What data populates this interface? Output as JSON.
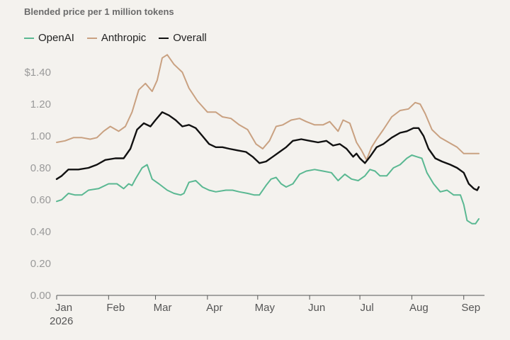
{
  "chart_data": {
    "type": "line",
    "title": "Blended price per 1 million tokens",
    "y_tick_labels": [
      "$1.40",
      "1.20",
      "1.00",
      "0.80",
      "0.60",
      "0.40",
      "0.20",
      "0.00"
    ],
    "y_tick_values": [
      1.4,
      1.2,
      1.0,
      0.8,
      0.6,
      0.4,
      0.2,
      0.0
    ],
    "ylim": [
      0,
      1.5
    ],
    "x_tick_labels": [
      "Jan",
      "Feb",
      "Mar",
      "Apr",
      "May",
      "Jun",
      "Jul",
      "Aug",
      "Sep"
    ],
    "x_year_label": "2026",
    "x_tick_dates": [
      "2026-01-01",
      "2026-02-01",
      "2026-03-01",
      "2026-04-01",
      "2026-05-01",
      "2026-06-01",
      "2026-07-01",
      "2026-08-01",
      "2026-09-01"
    ],
    "x_range": [
      "2026-01-01",
      "2026-09-10"
    ],
    "grid": false,
    "legend": "top-left",
    "series": [
      {
        "name": "OpenAI",
        "color": "#5ab892",
        "points": [
          [
            "2026-01-01",
            0.59
          ],
          [
            "2026-01-04",
            0.6
          ],
          [
            "2026-01-08",
            0.64
          ],
          [
            "2026-01-12",
            0.63
          ],
          [
            "2026-01-16",
            0.63
          ],
          [
            "2026-01-20",
            0.66
          ],
          [
            "2026-01-26",
            0.67
          ],
          [
            "2026-02-01",
            0.7
          ],
          [
            "2026-02-06",
            0.7
          ],
          [
            "2026-02-10",
            0.67
          ],
          [
            "2026-02-13",
            0.7
          ],
          [
            "2026-02-15",
            0.69
          ],
          [
            "2026-02-17",
            0.73
          ],
          [
            "2026-02-21",
            0.8
          ],
          [
            "2026-02-24",
            0.82
          ],
          [
            "2026-02-27",
            0.73
          ],
          [
            "2026-03-03",
            0.7
          ],
          [
            "2026-03-08",
            0.66
          ],
          [
            "2026-03-12",
            0.64
          ],
          [
            "2026-03-16",
            0.63
          ],
          [
            "2026-03-18",
            0.64
          ],
          [
            "2026-03-21",
            0.71
          ],
          [
            "2026-03-25",
            0.72
          ],
          [
            "2026-03-29",
            0.68
          ],
          [
            "2026-04-02",
            0.66
          ],
          [
            "2026-04-06",
            0.65
          ],
          [
            "2026-04-12",
            0.66
          ],
          [
            "2026-04-16",
            0.66
          ],
          [
            "2026-04-20",
            0.65
          ],
          [
            "2026-04-25",
            0.64
          ],
          [
            "2026-04-29",
            0.63
          ],
          [
            "2026-05-02",
            0.63
          ],
          [
            "2026-05-06",
            0.69
          ],
          [
            "2026-05-09",
            0.73
          ],
          [
            "2026-05-12",
            0.74
          ],
          [
            "2026-05-15",
            0.7
          ],
          [
            "2026-05-18",
            0.68
          ],
          [
            "2026-05-22",
            0.7
          ],
          [
            "2026-05-26",
            0.76
          ],
          [
            "2026-05-30",
            0.78
          ],
          [
            "2026-06-04",
            0.79
          ],
          [
            "2026-06-09",
            0.78
          ],
          [
            "2026-06-14",
            0.77
          ],
          [
            "2026-06-18",
            0.72
          ],
          [
            "2026-06-22",
            0.76
          ],
          [
            "2026-06-26",
            0.73
          ],
          [
            "2026-06-30",
            0.72
          ],
          [
            "2026-07-04",
            0.75
          ],
          [
            "2026-07-07",
            0.79
          ],
          [
            "2026-07-10",
            0.78
          ],
          [
            "2026-07-13",
            0.75
          ],
          [
            "2026-07-17",
            0.75
          ],
          [
            "2026-07-21",
            0.8
          ],
          [
            "2026-07-25",
            0.82
          ],
          [
            "2026-07-29",
            0.86
          ],
          [
            "2026-08-01",
            0.88
          ],
          [
            "2026-08-04",
            0.87
          ],
          [
            "2026-08-07",
            0.86
          ],
          [
            "2026-08-10",
            0.77
          ],
          [
            "2026-08-14",
            0.7
          ],
          [
            "2026-08-18",
            0.65
          ],
          [
            "2026-08-22",
            0.66
          ],
          [
            "2026-08-26",
            0.63
          ],
          [
            "2026-08-30",
            0.63
          ],
          [
            "2026-09-01",
            0.57
          ],
          [
            "2026-09-03",
            0.47
          ],
          [
            "2026-09-06",
            0.45
          ],
          [
            "2026-09-08",
            0.45
          ],
          [
            "2026-09-10",
            0.48
          ]
        ]
      },
      {
        "name": "Anthropic",
        "color": "#c9a181",
        "points": [
          [
            "2026-01-01",
            0.96
          ],
          [
            "2026-01-06",
            0.97
          ],
          [
            "2026-01-11",
            0.99
          ],
          [
            "2026-01-16",
            0.99
          ],
          [
            "2026-01-21",
            0.98
          ],
          [
            "2026-01-25",
            0.99
          ],
          [
            "2026-01-29",
            1.03
          ],
          [
            "2026-02-02",
            1.06
          ],
          [
            "2026-02-07",
            1.03
          ],
          [
            "2026-02-11",
            1.06
          ],
          [
            "2026-02-15",
            1.15
          ],
          [
            "2026-02-19",
            1.29
          ],
          [
            "2026-02-23",
            1.33
          ],
          [
            "2026-02-27",
            1.28
          ],
          [
            "2026-03-02",
            1.35
          ],
          [
            "2026-03-05",
            1.49
          ],
          [
            "2026-03-08",
            1.51
          ],
          [
            "2026-03-12",
            1.45
          ],
          [
            "2026-03-17",
            1.4
          ],
          [
            "2026-03-21",
            1.3
          ],
          [
            "2026-03-26",
            1.22
          ],
          [
            "2026-04-01",
            1.15
          ],
          [
            "2026-04-06",
            1.15
          ],
          [
            "2026-04-10",
            1.12
          ],
          [
            "2026-04-15",
            1.11
          ],
          [
            "2026-04-20",
            1.07
          ],
          [
            "2026-04-25",
            1.04
          ],
          [
            "2026-04-30",
            0.95
          ],
          [
            "2026-05-04",
            0.92
          ],
          [
            "2026-05-08",
            0.97
          ],
          [
            "2026-05-12",
            1.06
          ],
          [
            "2026-05-16",
            1.07
          ],
          [
            "2026-05-21",
            1.1
          ],
          [
            "2026-05-26",
            1.11
          ],
          [
            "2026-05-30",
            1.09
          ],
          [
            "2026-06-04",
            1.07
          ],
          [
            "2026-06-09",
            1.07
          ],
          [
            "2026-06-13",
            1.09
          ],
          [
            "2026-06-18",
            1.03
          ],
          [
            "2026-06-21",
            1.1
          ],
          [
            "2026-06-25",
            1.08
          ],
          [
            "2026-06-29",
            0.96
          ],
          [
            "2026-07-02",
            0.91
          ],
          [
            "2026-07-05",
            0.85
          ],
          [
            "2026-07-08",
            0.93
          ],
          [
            "2026-07-11",
            0.98
          ],
          [
            "2026-07-15",
            1.04
          ],
          [
            "2026-07-20",
            1.12
          ],
          [
            "2026-07-25",
            1.16
          ],
          [
            "2026-07-30",
            1.17
          ],
          [
            "2026-08-03",
            1.21
          ],
          [
            "2026-08-06",
            1.2
          ],
          [
            "2026-08-09",
            1.14
          ],
          [
            "2026-08-13",
            1.04
          ],
          [
            "2026-08-18",
            0.99
          ],
          [
            "2026-08-23",
            0.96
          ],
          [
            "2026-08-28",
            0.93
          ],
          [
            "2026-09-01",
            0.89
          ],
          [
            "2026-09-05",
            0.89
          ],
          [
            "2026-09-10",
            0.89
          ]
        ]
      },
      {
        "name": "Overall",
        "color": "#111111",
        "points": [
          [
            "2026-01-01",
            0.73
          ],
          [
            "2026-01-04",
            0.75
          ],
          [
            "2026-01-08",
            0.79
          ],
          [
            "2026-01-14",
            0.79
          ],
          [
            "2026-01-20",
            0.8
          ],
          [
            "2026-01-25",
            0.82
          ],
          [
            "2026-01-30",
            0.85
          ],
          [
            "2026-02-05",
            0.86
          ],
          [
            "2026-02-10",
            0.86
          ],
          [
            "2026-02-14",
            0.92
          ],
          [
            "2026-02-18",
            1.04
          ],
          [
            "2026-02-22",
            1.08
          ],
          [
            "2026-02-26",
            1.06
          ],
          [
            "2026-03-01",
            1.1
          ],
          [
            "2026-03-05",
            1.15
          ],
          [
            "2026-03-09",
            1.13
          ],
          [
            "2026-03-13",
            1.1
          ],
          [
            "2026-03-17",
            1.06
          ],
          [
            "2026-03-21",
            1.07
          ],
          [
            "2026-03-25",
            1.05
          ],
          [
            "2026-03-29",
            1.0
          ],
          [
            "2026-04-02",
            0.95
          ],
          [
            "2026-04-06",
            0.93
          ],
          [
            "2026-04-10",
            0.93
          ],
          [
            "2026-04-14",
            0.92
          ],
          [
            "2026-04-19",
            0.91
          ],
          [
            "2026-04-24",
            0.9
          ],
          [
            "2026-04-28",
            0.87
          ],
          [
            "2026-05-02",
            0.83
          ],
          [
            "2026-05-06",
            0.84
          ],
          [
            "2026-05-10",
            0.87
          ],
          [
            "2026-05-14",
            0.9
          ],
          [
            "2026-05-18",
            0.93
          ],
          [
            "2026-05-22",
            0.97
          ],
          [
            "2026-05-27",
            0.98
          ],
          [
            "2026-06-01",
            0.97
          ],
          [
            "2026-06-06",
            0.96
          ],
          [
            "2026-06-11",
            0.97
          ],
          [
            "2026-06-15",
            0.94
          ],
          [
            "2026-06-19",
            0.95
          ],
          [
            "2026-06-23",
            0.92
          ],
          [
            "2026-06-27",
            0.87
          ],
          [
            "2026-06-29",
            0.89
          ],
          [
            "2026-07-01",
            0.86
          ],
          [
            "2026-07-04",
            0.83
          ],
          [
            "2026-07-07",
            0.87
          ],
          [
            "2026-07-11",
            0.93
          ],
          [
            "2026-07-15",
            0.95
          ],
          [
            "2026-07-20",
            0.99
          ],
          [
            "2026-07-25",
            1.02
          ],
          [
            "2026-07-29",
            1.03
          ],
          [
            "2026-08-02",
            1.05
          ],
          [
            "2026-08-05",
            1.05
          ],
          [
            "2026-08-08",
            1.0
          ],
          [
            "2026-08-11",
            0.92
          ],
          [
            "2026-08-15",
            0.86
          ],
          [
            "2026-08-19",
            0.84
          ],
          [
            "2026-08-24",
            0.82
          ],
          [
            "2026-08-28",
            0.8
          ],
          [
            "2026-09-01",
            0.77
          ],
          [
            "2026-09-04",
            0.7
          ],
          [
            "2026-09-07",
            0.67
          ],
          [
            "2026-09-09",
            0.66
          ],
          [
            "2026-09-10",
            0.68
          ]
        ]
      }
    ]
  }
}
